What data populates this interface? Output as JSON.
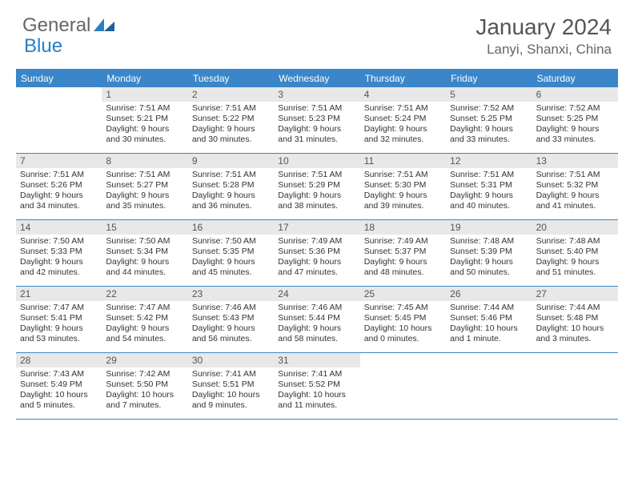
{
  "brand": {
    "part1": "General",
    "part2": "Blue"
  },
  "colors": {
    "header_blue": "#3a86c8",
    "logo_blue": "#2a7fc4",
    "day_num_bg": "#e8e8e8",
    "text": "#333333",
    "title": "#555555"
  },
  "title": "January 2024",
  "location": "Lanyi, Shanxi, China",
  "weekdays": [
    "Sunday",
    "Monday",
    "Tuesday",
    "Wednesday",
    "Thursday",
    "Friday",
    "Saturday"
  ],
  "first_day_index": 1,
  "days": [
    {
      "n": "1",
      "sunrise": "Sunrise: 7:51 AM",
      "sunset": "Sunset: 5:21 PM",
      "daylight": "Daylight: 9 hours and 30 minutes."
    },
    {
      "n": "2",
      "sunrise": "Sunrise: 7:51 AM",
      "sunset": "Sunset: 5:22 PM",
      "daylight": "Daylight: 9 hours and 30 minutes."
    },
    {
      "n": "3",
      "sunrise": "Sunrise: 7:51 AM",
      "sunset": "Sunset: 5:23 PM",
      "daylight": "Daylight: 9 hours and 31 minutes."
    },
    {
      "n": "4",
      "sunrise": "Sunrise: 7:51 AM",
      "sunset": "Sunset: 5:24 PM",
      "daylight": "Daylight: 9 hours and 32 minutes."
    },
    {
      "n": "5",
      "sunrise": "Sunrise: 7:52 AM",
      "sunset": "Sunset: 5:25 PM",
      "daylight": "Daylight: 9 hours and 33 minutes."
    },
    {
      "n": "6",
      "sunrise": "Sunrise: 7:52 AM",
      "sunset": "Sunset: 5:25 PM",
      "daylight": "Daylight: 9 hours and 33 minutes."
    },
    {
      "n": "7",
      "sunrise": "Sunrise: 7:51 AM",
      "sunset": "Sunset: 5:26 PM",
      "daylight": "Daylight: 9 hours and 34 minutes."
    },
    {
      "n": "8",
      "sunrise": "Sunrise: 7:51 AM",
      "sunset": "Sunset: 5:27 PM",
      "daylight": "Daylight: 9 hours and 35 minutes."
    },
    {
      "n": "9",
      "sunrise": "Sunrise: 7:51 AM",
      "sunset": "Sunset: 5:28 PM",
      "daylight": "Daylight: 9 hours and 36 minutes."
    },
    {
      "n": "10",
      "sunrise": "Sunrise: 7:51 AM",
      "sunset": "Sunset: 5:29 PM",
      "daylight": "Daylight: 9 hours and 38 minutes."
    },
    {
      "n": "11",
      "sunrise": "Sunrise: 7:51 AM",
      "sunset": "Sunset: 5:30 PM",
      "daylight": "Daylight: 9 hours and 39 minutes."
    },
    {
      "n": "12",
      "sunrise": "Sunrise: 7:51 AM",
      "sunset": "Sunset: 5:31 PM",
      "daylight": "Daylight: 9 hours and 40 minutes."
    },
    {
      "n": "13",
      "sunrise": "Sunrise: 7:51 AM",
      "sunset": "Sunset: 5:32 PM",
      "daylight": "Daylight: 9 hours and 41 minutes."
    },
    {
      "n": "14",
      "sunrise": "Sunrise: 7:50 AM",
      "sunset": "Sunset: 5:33 PM",
      "daylight": "Daylight: 9 hours and 42 minutes."
    },
    {
      "n": "15",
      "sunrise": "Sunrise: 7:50 AM",
      "sunset": "Sunset: 5:34 PM",
      "daylight": "Daylight: 9 hours and 44 minutes."
    },
    {
      "n": "16",
      "sunrise": "Sunrise: 7:50 AM",
      "sunset": "Sunset: 5:35 PM",
      "daylight": "Daylight: 9 hours and 45 minutes."
    },
    {
      "n": "17",
      "sunrise": "Sunrise: 7:49 AM",
      "sunset": "Sunset: 5:36 PM",
      "daylight": "Daylight: 9 hours and 47 minutes."
    },
    {
      "n": "18",
      "sunrise": "Sunrise: 7:49 AM",
      "sunset": "Sunset: 5:37 PM",
      "daylight": "Daylight: 9 hours and 48 minutes."
    },
    {
      "n": "19",
      "sunrise": "Sunrise: 7:48 AM",
      "sunset": "Sunset: 5:39 PM",
      "daylight": "Daylight: 9 hours and 50 minutes."
    },
    {
      "n": "20",
      "sunrise": "Sunrise: 7:48 AM",
      "sunset": "Sunset: 5:40 PM",
      "daylight": "Daylight: 9 hours and 51 minutes."
    },
    {
      "n": "21",
      "sunrise": "Sunrise: 7:47 AM",
      "sunset": "Sunset: 5:41 PM",
      "daylight": "Daylight: 9 hours and 53 minutes."
    },
    {
      "n": "22",
      "sunrise": "Sunrise: 7:47 AM",
      "sunset": "Sunset: 5:42 PM",
      "daylight": "Daylight: 9 hours and 54 minutes."
    },
    {
      "n": "23",
      "sunrise": "Sunrise: 7:46 AM",
      "sunset": "Sunset: 5:43 PM",
      "daylight": "Daylight: 9 hours and 56 minutes."
    },
    {
      "n": "24",
      "sunrise": "Sunrise: 7:46 AM",
      "sunset": "Sunset: 5:44 PM",
      "daylight": "Daylight: 9 hours and 58 minutes."
    },
    {
      "n": "25",
      "sunrise": "Sunrise: 7:45 AM",
      "sunset": "Sunset: 5:45 PM",
      "daylight": "Daylight: 10 hours and 0 minutes."
    },
    {
      "n": "26",
      "sunrise": "Sunrise: 7:44 AM",
      "sunset": "Sunset: 5:46 PM",
      "daylight": "Daylight: 10 hours and 1 minute."
    },
    {
      "n": "27",
      "sunrise": "Sunrise: 7:44 AM",
      "sunset": "Sunset: 5:48 PM",
      "daylight": "Daylight: 10 hours and 3 minutes."
    },
    {
      "n": "28",
      "sunrise": "Sunrise: 7:43 AM",
      "sunset": "Sunset: 5:49 PM",
      "daylight": "Daylight: 10 hours and 5 minutes."
    },
    {
      "n": "29",
      "sunrise": "Sunrise: 7:42 AM",
      "sunset": "Sunset: 5:50 PM",
      "daylight": "Daylight: 10 hours and 7 minutes."
    },
    {
      "n": "30",
      "sunrise": "Sunrise: 7:41 AM",
      "sunset": "Sunset: 5:51 PM",
      "daylight": "Daylight: 10 hours and 9 minutes."
    },
    {
      "n": "31",
      "sunrise": "Sunrise: 7:41 AM",
      "sunset": "Sunset: 5:52 PM",
      "daylight": "Daylight: 10 hours and 11 minutes."
    }
  ]
}
